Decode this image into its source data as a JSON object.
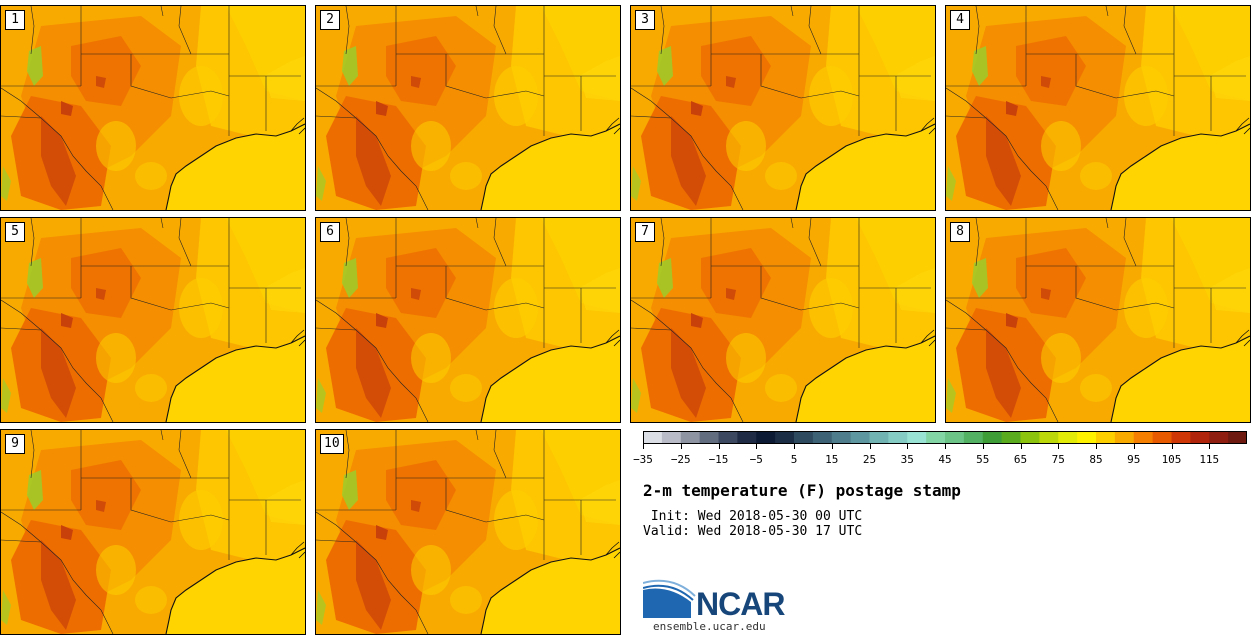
{
  "panels": [
    {
      "label": "1"
    },
    {
      "label": "2"
    },
    {
      "label": "3"
    },
    {
      "label": "4"
    },
    {
      "label": "5"
    },
    {
      "label": "6"
    },
    {
      "label": "7"
    },
    {
      "label": "8"
    },
    {
      "label": "9"
    },
    {
      "label": "10"
    }
  ],
  "colorbar": {
    "min": -35,
    "max": 120,
    "step": 5,
    "tick_labels": [
      "−35",
      "−25",
      "−15",
      "−5",
      "5",
      "15",
      "25",
      "35",
      "45",
      "55",
      "65",
      "75",
      "85",
      "95",
      "105",
      "115"
    ],
    "tick_values": [
      -35,
      -25,
      -15,
      -5,
      5,
      15,
      25,
      35,
      45,
      55,
      65,
      75,
      85,
      95,
      105,
      115
    ],
    "colors": [
      "#dcdee6",
      "#b9bcc7",
      "#8e94a2",
      "#636d80",
      "#3c4760",
      "#1f2a44",
      "#0d1a33",
      "#1b2d45",
      "#2e4a5e",
      "#3e6275",
      "#4f7d8b",
      "#5f97a0",
      "#71b3b2",
      "#85cdc4",
      "#99e3d4",
      "#84d5a6",
      "#6cc486",
      "#52b162",
      "#3f9d37",
      "#5aab1e",
      "#8cc30e",
      "#bcd80a",
      "#e2ea08",
      "#fef200",
      "#fdcf00",
      "#f9aa00",
      "#f57f00",
      "#e85a00",
      "#cf3806",
      "#b0240b",
      "#8f1d10",
      "#6e1a10"
    ]
  },
  "info": {
    "title": "2-m temperature (F) postage stamp",
    "init": " Init: Wed 2018-05-30 00 UTC",
    "valid": "Valid: Wed 2018-05-30 17 UTC"
  },
  "branding": {
    "logo_text": "NCAR",
    "url": "ensemble.ucar.edu",
    "logo_color": "#17477a"
  },
  "map_colors": {
    "gulf": "#ffd400",
    "warm": "#f9aa00",
    "warmer": "#f58a00",
    "hot": "#ee6d00",
    "hottest": "#c8400a",
    "cool": "#fdcf00",
    "green": "#9ccd2a"
  }
}
